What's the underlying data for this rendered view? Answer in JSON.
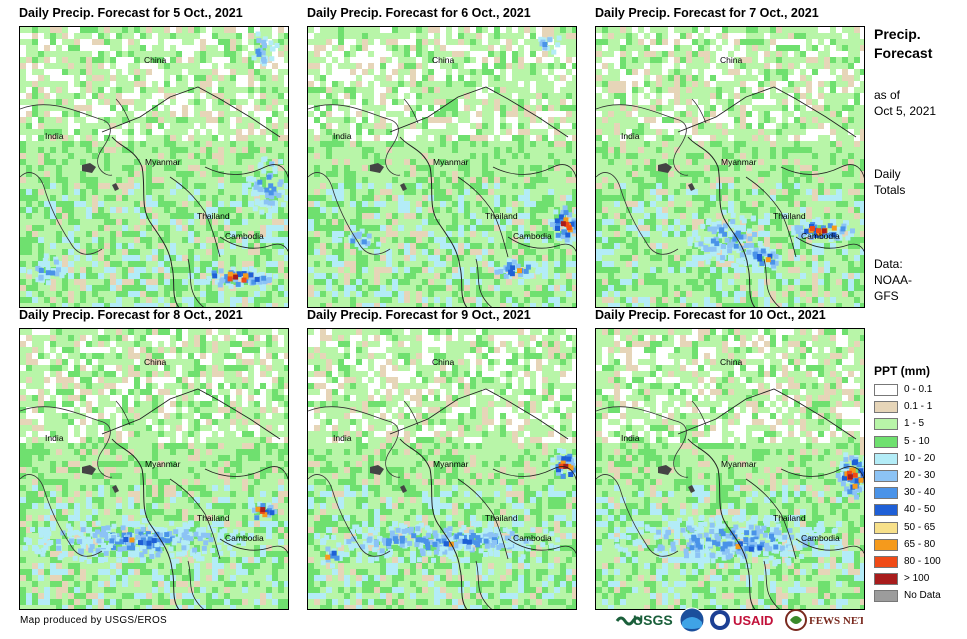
{
  "panels": [
    {
      "title": "Daily Precip. Forecast for 5 Oct., 2021"
    },
    {
      "title": "Daily Precip. Forecast for 6 Oct., 2021"
    },
    {
      "title": "Daily Precip. Forecast for 7 Oct., 2021"
    },
    {
      "title": "Daily Precip. Forecast for 8 Oct., 2021"
    },
    {
      "title": "Daily Precip. Forecast for 9 Oct., 2021"
    },
    {
      "title": "Daily Precip. Forecast for 10 Oct., 2021"
    }
  ],
  "places": {
    "china": "China",
    "india": "India",
    "myanmar": "Myanmar",
    "thailand": "Thailand",
    "cambodia": "Cambodia"
  },
  "side": {
    "title_line1": "Precip.",
    "title_line2": "Forecast",
    "asof_line1": "as of",
    "asof_line2": "Oct 5, 2021",
    "daily_line1": "Daily",
    "daily_line2": "Totals",
    "data_line1": "Data:",
    "data_line2": "NOAA-",
    "data_line3": "GFS"
  },
  "legend": {
    "title": "PPT (mm)",
    "items": [
      {
        "label": "0 - 0.1",
        "color": "#ffffff"
      },
      {
        "label": "0.1 - 1",
        "color": "#e6d5b8"
      },
      {
        "label": "1 - 5",
        "color": "#b8f5a8"
      },
      {
        "label": "5 - 10",
        "color": "#6fe06f"
      },
      {
        "label": "10 - 20",
        "color": "#b3ecf7"
      },
      {
        "label": "20 - 30",
        "color": "#8cc3f5"
      },
      {
        "label": "30 - 40",
        "color": "#4a93e8"
      },
      {
        "label": "40 - 50",
        "color": "#1e5fd6"
      },
      {
        "label": "50 - 65",
        "color": "#f7e08a"
      },
      {
        "label": "65 - 80",
        "color": "#f59a1c"
      },
      {
        "label": "80 - 100",
        "color": "#f04a16"
      },
      {
        "label": "> 100",
        "color": "#a81c1c"
      },
      {
        "label": "No Data",
        "color": "#9c9c9c"
      }
    ]
  },
  "credit": "Map produced by USGS/EROS",
  "logos": {
    "usgs": "USGS",
    "noaa": "NOAA",
    "usaid": "USAID",
    "fewsnet": "FEWS NET"
  }
}
